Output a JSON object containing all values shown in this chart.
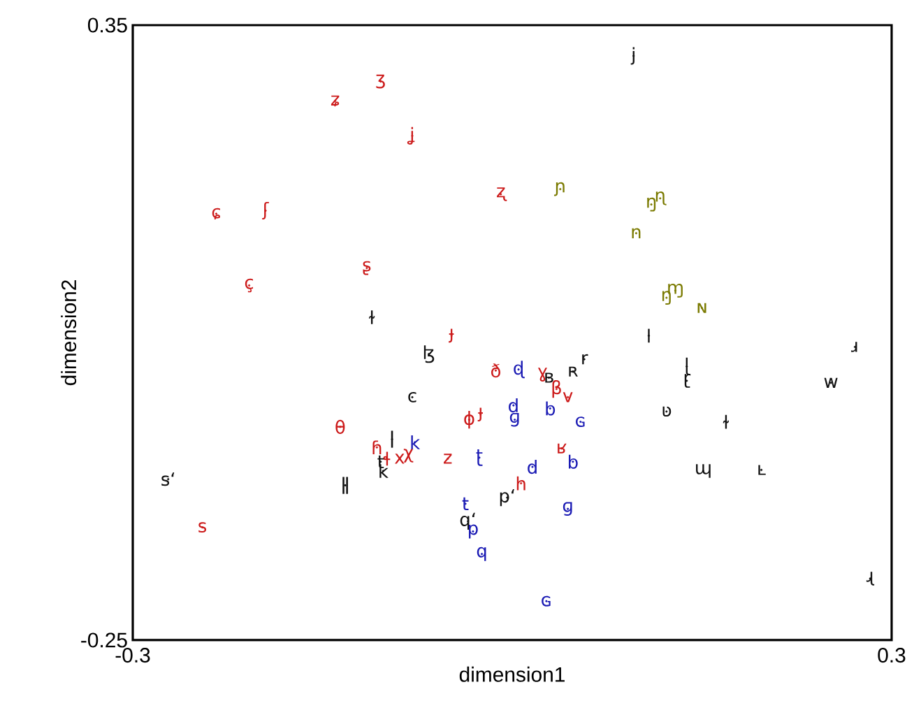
{
  "chart_data": {
    "type": "scatter",
    "xlabel": "dimension1",
    "ylabel": "dimension2",
    "xlim": [
      -0.3,
      0.3
    ],
    "ylim": [
      -0.25,
      0.35
    ],
    "xticks": [
      -0.3,
      0.3
    ],
    "yticks": [
      -0.25,
      0.35
    ],
    "marker": "circle",
    "series": [
      {
        "color": "#cc1a1a",
        "x": [
          -0.14,
          -0.104,
          -0.079,
          -0.234,
          -0.195,
          -0.208,
          -0.115,
          -0.009,
          -0.048,
          -0.013,
          0.024,
          0.035,
          0.044,
          -0.034,
          -0.025,
          -0.136,
          -0.107,
          -0.099,
          -0.089,
          -0.082,
          -0.051,
          0.039,
          0.007,
          -0.245
        ],
        "values": [
          0.276,
          0.295,
          0.242,
          0.166,
          0.169,
          0.096,
          0.113,
          0.185,
          0.047,
          0.013,
          0.009,
          -0.005,
          -0.013,
          -0.035,
          -0.03,
          -0.042,
          -0.062,
          -0.073,
          -0.073,
          -0.07,
          -0.073,
          -0.063,
          -0.097,
          -0.14
        ],
        "value_labels": [
          "ʑ",
          "ʒ",
          "ʝ",
          "ɕ",
          "ʃ",
          "ç",
          "ʂ",
          "ʐ",
          "ɟ",
          "ð",
          "ɣ",
          "β",
          "v",
          "ɸ",
          "ɟ",
          "θ",
          "ɦ",
          "ɬ",
          "x",
          "χ",
          "z",
          "ʁ",
          "h",
          "s"
        ]
      },
      {
        "color": "#111111",
        "x": [
          0.096,
          -0.111,
          -0.066,
          -0.079,
          0.029,
          0.048,
          0.057,
          0.108,
          0.138,
          0.138,
          0.122,
          0.169,
          0.271,
          0.252,
          0.151,
          0.197,
          0.283,
          -0.272,
          -0.132,
          -0.095,
          -0.104,
          -0.102,
          -0.004,
          -0.035
        ],
        "values": [
          0.32,
          0.065,
          0.029,
          -0.013,
          0.006,
          0.012,
          0.024,
          0.047,
          0.017,
          0.003,
          -0.027,
          -0.037,
          0.036,
          0.001,
          -0.085,
          -0.084,
          -0.19,
          -0.093,
          -0.099,
          -0.054,
          -0.076,
          -0.085,
          -0.111,
          -0.134
        ],
        "value_labels": [
          "j",
          "ɫ",
          "ɮ",
          "c",
          "ʙ",
          "ʀ",
          "r",
          "l",
          "ɭ",
          "ɽ",
          "ʋ",
          "ɫ",
          "ɹ",
          "w",
          "ɰ",
          "ʟ",
          "ɻ",
          "s‘",
          "ǁ",
          "ǀ",
          "t",
          "k",
          "p‘",
          "q‘"
        ]
      },
      {
        "color": "#1a1ab4",
        "x": [
          0.005,
          0.001,
          0.002,
          0.03,
          0.054,
          -0.077,
          -0.026,
          0.016,
          0.048,
          -0.037,
          0.044,
          -0.031,
          -0.024,
          0.027
        ],
        "values": [
          0.014,
          -0.021,
          -0.035,
          -0.024,
          -0.037,
          -0.057,
          -0.072,
          -0.081,
          -0.076,
          -0.117,
          -0.122,
          -0.144,
          -0.166,
          -0.212
        ],
        "value_labels": [
          "ɖ",
          "d",
          "ɡ",
          "b",
          "ɢ",
          "k",
          "ʈ",
          "d",
          "b",
          "t",
          "ɡ",
          "p",
          "q",
          "ɢ"
        ]
      },
      {
        "color": "#7a7a00",
        "x": [
          0.038,
          0.117,
          0.11,
          0.098,
          0.129,
          0.122,
          0.15
        ],
        "values": [
          0.19,
          0.181,
          0.175,
          0.147,
          0.091,
          0.084,
          0.074
        ],
        "value_labels": [
          "ɲ",
          "ɳ",
          "ŋ",
          "n",
          "ɱ",
          "ŋ",
          "ɴ"
        ]
      }
    ]
  }
}
